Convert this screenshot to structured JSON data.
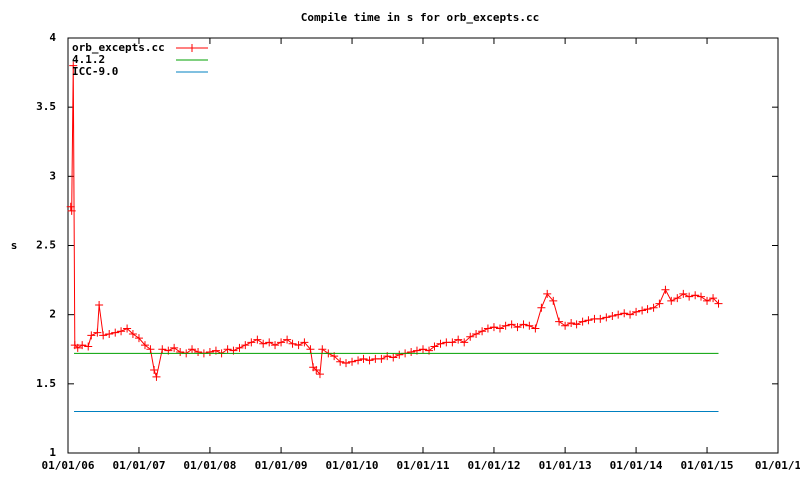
{
  "chart_data": {
    "type": "line",
    "title": "Compile time in s for orb_excepts.cc",
    "y_label": "s",
    "xlim": [
      "2006-01-01",
      "2016-01-01"
    ],
    "xticks": [
      {
        "value": "2006-01-01",
        "label": "01/01/06"
      },
      {
        "value": "2007-01-01",
        "label": "01/01/07"
      },
      {
        "value": "2008-01-01",
        "label": "01/01/08"
      },
      {
        "value": "2009-01-01",
        "label": "01/01/09"
      },
      {
        "value": "2010-01-01",
        "label": "01/01/10"
      },
      {
        "value": "2011-01-01",
        "label": "01/01/11"
      },
      {
        "value": "2012-01-01",
        "label": "01/01/12"
      },
      {
        "value": "2013-01-01",
        "label": "01/01/13"
      },
      {
        "value": "2014-01-01",
        "label": "01/01/14"
      },
      {
        "value": "2015-01-01",
        "label": "01/01/15"
      },
      {
        "value": "2016-01-01",
        "label": "01/01/1"
      }
    ],
    "ylim": [
      1,
      4
    ],
    "yticks": [
      1,
      1.5,
      2,
      2.5,
      3,
      3.5,
      4
    ],
    "grid": false,
    "legend": "top-left",
    "series": [
      {
        "name": "orb_excepts.cc",
        "color": "#ff0000",
        "markers": true,
        "x": [
          "2006-01-15",
          "2006-01-20",
          "2006-01-28",
          "2006-02-05",
          "2006-02-20",
          "2006-03-15",
          "2006-04-15",
          "2006-05-01",
          "2006-06-01",
          "2006-06-10",
          "2006-07-01",
          "2006-08-01",
          "2006-09-01",
          "2006-10-01",
          "2006-11-01",
          "2006-12-01",
          "2007-01-01",
          "2007-02-01",
          "2007-03-01",
          "2007-03-20",
          "2007-04-01",
          "2007-05-01",
          "2007-06-01",
          "2007-07-01",
          "2007-08-01",
          "2007-09-01",
          "2007-10-01",
          "2007-11-01",
          "2007-12-01",
          "2008-01-01",
          "2008-02-01",
          "2008-03-01",
          "2008-04-01",
          "2008-05-01",
          "2008-06-01",
          "2008-07-01",
          "2008-08-01",
          "2008-09-01",
          "2008-10-01",
          "2008-11-01",
          "2008-12-01",
          "2009-01-01",
          "2009-02-01",
          "2009-03-01",
          "2009-04-01",
          "2009-05-01",
          "2009-06-01",
          "2009-06-15",
          "2009-07-01",
          "2009-07-20",
          "2009-08-01",
          "2009-09-01",
          "2009-10-01",
          "2009-11-01",
          "2009-12-01",
          "2010-01-01",
          "2010-02-01",
          "2010-03-01",
          "2010-04-01",
          "2010-05-01",
          "2010-06-01",
          "2010-07-01",
          "2010-08-01",
          "2010-09-01",
          "2010-10-01",
          "2010-11-01",
          "2010-12-01",
          "2011-01-01",
          "2011-02-01",
          "2011-03-01",
          "2011-04-01",
          "2011-05-01",
          "2011-06-01",
          "2011-07-01",
          "2011-08-01",
          "2011-09-01",
          "2011-10-01",
          "2011-11-01",
          "2011-12-01",
          "2012-01-01",
          "2012-02-01",
          "2012-03-01",
          "2012-04-01",
          "2012-05-01",
          "2012-06-01",
          "2012-07-01",
          "2012-08-01",
          "2012-09-01",
          "2012-10-01",
          "2012-11-01",
          "2012-12-01",
          "2013-01-01",
          "2013-02-01",
          "2013-03-01",
          "2013-04-01",
          "2013-05-01",
          "2013-06-01",
          "2013-07-01",
          "2013-08-01",
          "2013-09-01",
          "2013-10-01",
          "2013-11-01",
          "2013-12-01",
          "2014-01-01",
          "2014-02-01",
          "2014-03-01",
          "2014-04-01",
          "2014-05-01",
          "2014-06-01",
          "2014-07-01",
          "2014-08-01",
          "2014-09-01",
          "2014-10-01",
          "2014-11-01",
          "2014-12-01",
          "2015-01-01",
          "2015-02-01",
          "2015-03-01"
        ],
        "values": [
          2.78,
          2.75,
          3.8,
          1.78,
          1.76,
          1.78,
          1.77,
          1.85,
          1.87,
          2.07,
          1.85,
          1.86,
          1.87,
          1.88,
          1.9,
          1.86,
          1.83,
          1.78,
          1.75,
          1.6,
          1.55,
          1.75,
          1.74,
          1.76,
          1.73,
          1.72,
          1.75,
          1.73,
          1.72,
          1.73,
          1.74,
          1.72,
          1.75,
          1.74,
          1.76,
          1.78,
          1.8,
          1.82,
          1.79,
          1.8,
          1.78,
          1.8,
          1.82,
          1.79,
          1.78,
          1.8,
          1.75,
          1.62,
          1.6,
          1.57,
          1.75,
          1.72,
          1.7,
          1.66,
          1.65,
          1.66,
          1.67,
          1.68,
          1.67,
          1.68,
          1.68,
          1.7,
          1.69,
          1.71,
          1.72,
          1.73,
          1.74,
          1.75,
          1.74,
          1.77,
          1.79,
          1.8,
          1.8,
          1.82,
          1.8,
          1.84,
          1.86,
          1.88,
          1.9,
          1.91,
          1.9,
          1.92,
          1.93,
          1.91,
          1.93,
          1.92,
          1.9,
          2.05,
          2.15,
          2.1,
          1.95,
          1.92,
          1.94,
          1.93,
          1.95,
          1.96,
          1.97,
          1.97,
          1.98,
          1.99,
          2.0,
          2.01,
          2.0,
          2.02,
          2.03,
          2.04,
          2.05,
          2.08,
          2.18,
          2.1,
          2.12,
          2.15,
          2.13,
          2.14,
          2.13,
          2.1,
          2.12,
          2.08
        ]
      },
      {
        "name": "4.1.2",
        "color": "#00a000",
        "markers": false,
        "x": [
          "2006-02-01",
          "2015-03-01"
        ],
        "values": [
          1.72,
          1.72
        ]
      },
      {
        "name": "ICC-9.0",
        "color": "#0080c0",
        "markers": false,
        "x": [
          "2006-02-01",
          "2015-03-01"
        ],
        "values": [
          1.3,
          1.3
        ]
      }
    ]
  }
}
